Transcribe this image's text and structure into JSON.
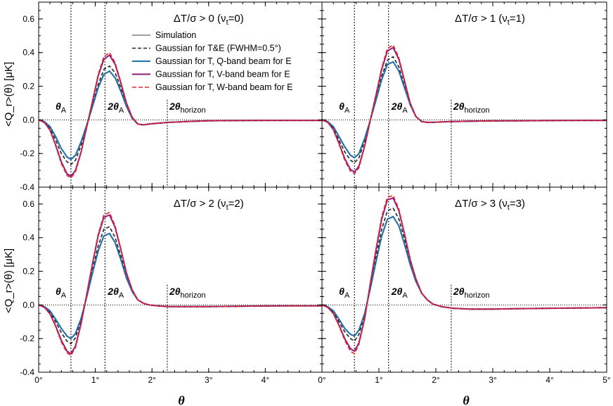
{
  "figure": {
    "ylabel": "<Q_r>(θ) [μK]",
    "xlabel": "θ"
  },
  "colors": {
    "Simulation": "#a0a0a0",
    "Gaussian for T&E (FWHM=0.5°)": "#222222",
    "Gaussian for T, Q-band beam for E": "#1f6fa8",
    "Gaussian for T, V-band beam for E": "#8b1f7a",
    "Gaussian for T, W-band beam for E": "#e8262b"
  },
  "series_styles": [
    {
      "name": "Simulation",
      "dash": "",
      "width": 2
    },
    {
      "name": "Gaussian for T&E (FWHM=0.5°)",
      "dash": "5,3",
      "width": 1.6
    },
    {
      "name": "Gaussian for T, Q-band beam for E",
      "dash": "",
      "width": 2
    },
    {
      "name": "Gaussian for T, V-band beam for E",
      "dash": "",
      "width": 2
    },
    {
      "name": "Gaussian for T, W-band beam for E",
      "dash": "6,3",
      "width": 1.6
    }
  ],
  "markers": {
    "theta_a": {
      "x": 0.57,
      "label": "θ",
      "sub": "A"
    },
    "two_theta_a": {
      "x": 1.17,
      "label": "2θ",
      "sub": "A"
    },
    "two_theta_horizon": {
      "x": 2.27,
      "label": "2θ",
      "sub": "horizon"
    }
  },
  "chart_data": [
    {
      "type": "line",
      "title": "ΔT/σ > 0 (ν_t=0)",
      "xlim": [
        0,
        5
      ],
      "ylim": [
        -0.4,
        0.7
      ],
      "yticks": [
        -0.4,
        -0.2,
        0.0,
        0.2,
        0.4,
        0.6
      ],
      "xticks": [
        0,
        1,
        2,
        3,
        4,
        5
      ],
      "xtick_labels": [
        "0°",
        "1°",
        "2°",
        "3°",
        "4°",
        ""
      ],
      "ytick_labels": [
        "-0.4",
        "-0.2",
        "0.0",
        "0.2",
        "0.4",
        "0.6"
      ],
      "show_legend": true,
      "legend_position": "upper-center",
      "x": [
        0,
        0.1,
        0.2,
        0.3,
        0.4,
        0.5,
        0.57,
        0.65,
        0.75,
        0.85,
        0.95,
        1.05,
        1.15,
        1.25,
        1.35,
        1.45,
        1.55,
        1.65,
        1.75,
        1.85,
        1.95,
        2.1,
        2.3,
        2.6,
        3.0,
        3.5,
        4.0,
        4.5,
        5.0
      ],
      "series": [
        {
          "name": "Simulation",
          "values": [
            0,
            -0.01,
            -0.04,
            -0.1,
            -0.17,
            -0.22,
            -0.235,
            -0.21,
            -0.13,
            -0.03,
            0.08,
            0.19,
            0.27,
            0.29,
            0.25,
            0.17,
            0.08,
            0.01,
            -0.025,
            -0.03,
            -0.025,
            -0.02,
            -0.015,
            -0.01,
            -0.005,
            -0.004,
            -0.003,
            -0.003,
            -0.003
          ]
        },
        {
          "name": "Gaussian for T&E (FWHM=0.5°)",
          "values": [
            0,
            -0.012,
            -0.05,
            -0.12,
            -0.2,
            -0.25,
            -0.265,
            -0.24,
            -0.15,
            -0.03,
            0.09,
            0.21,
            0.3,
            0.32,
            0.28,
            0.19,
            0.09,
            0.015,
            -0.025,
            -0.03,
            -0.025,
            -0.02,
            -0.015,
            -0.01,
            -0.005,
            -0.004,
            -0.003,
            -0.003,
            -0.003
          ]
        },
        {
          "name": "Gaussian for T, Q-band beam for E",
          "values": [
            0,
            -0.01,
            -0.04,
            -0.1,
            -0.17,
            -0.22,
            -0.235,
            -0.21,
            -0.13,
            -0.03,
            0.08,
            0.19,
            0.27,
            0.29,
            0.25,
            0.17,
            0.08,
            0.01,
            -0.025,
            -0.03,
            -0.025,
            -0.02,
            -0.015,
            -0.01,
            -0.005,
            -0.004,
            -0.003,
            -0.003,
            -0.003
          ]
        },
        {
          "name": "Gaussian for T, V-band beam for E",
          "values": [
            0,
            -0.015,
            -0.06,
            -0.15,
            -0.25,
            -0.32,
            -0.335,
            -0.3,
            -0.19,
            -0.04,
            0.11,
            0.26,
            0.36,
            0.385,
            0.33,
            0.22,
            0.1,
            0.015,
            -0.025,
            -0.03,
            -0.025,
            -0.02,
            -0.015,
            -0.01,
            -0.005,
            -0.004,
            -0.003,
            -0.003,
            -0.003
          ]
        },
        {
          "name": "Gaussian for T, W-band beam for E",
          "values": [
            0,
            -0.016,
            -0.062,
            -0.155,
            -0.26,
            -0.33,
            -0.345,
            -0.31,
            -0.195,
            -0.04,
            0.115,
            0.27,
            0.375,
            0.4,
            0.34,
            0.225,
            0.1,
            0.015,
            -0.025,
            -0.03,
            -0.025,
            -0.02,
            -0.015,
            -0.01,
            -0.005,
            -0.004,
            -0.003,
            -0.003,
            -0.003
          ]
        }
      ]
    },
    {
      "type": "line",
      "title": "ΔT/σ > 1 (ν_t=1)",
      "xlim": [
        0,
        5
      ],
      "ylim": [
        -0.4,
        0.7
      ],
      "yticks": [
        -0.4,
        -0.2,
        0.0,
        0.2,
        0.4,
        0.6
      ],
      "xticks": [
        0,
        1,
        2,
        3,
        4,
        5
      ],
      "xtick_labels": [
        "0°",
        "1°",
        "2°",
        "3°",
        "4°",
        "5°"
      ],
      "ytick_labels": [],
      "show_legend": false,
      "x": [
        0,
        0.1,
        0.2,
        0.3,
        0.4,
        0.5,
        0.57,
        0.65,
        0.75,
        0.85,
        0.95,
        1.05,
        1.15,
        1.25,
        1.35,
        1.45,
        1.55,
        1.65,
        1.75,
        1.85,
        1.95,
        2.1,
        2.3,
        2.6,
        3.0,
        3.5,
        4.0,
        4.5,
        5.0
      ],
      "series": [
        {
          "name": "Simulation",
          "values": [
            0,
            -0.01,
            -0.04,
            -0.1,
            -0.16,
            -0.21,
            -0.225,
            -0.2,
            -0.11,
            0.0,
            0.12,
            0.24,
            0.33,
            0.345,
            0.29,
            0.19,
            0.09,
            0.02,
            -0.01,
            -0.015,
            -0.015,
            -0.012,
            -0.01,
            -0.008,
            -0.006,
            -0.005,
            -0.004,
            -0.003,
            -0.003
          ]
        },
        {
          "name": "Gaussian for T&E (FWHM=0.5°)",
          "values": [
            0,
            -0.012,
            -0.05,
            -0.12,
            -0.19,
            -0.24,
            -0.255,
            -0.225,
            -0.125,
            0.0,
            0.13,
            0.26,
            0.355,
            0.375,
            0.315,
            0.2,
            0.095,
            0.02,
            -0.01,
            -0.015,
            -0.015,
            -0.012,
            -0.01,
            -0.008,
            -0.006,
            -0.005,
            -0.004,
            -0.003,
            -0.003
          ]
        },
        {
          "name": "Gaussian for T, Q-band beam for E",
          "values": [
            0,
            -0.01,
            -0.04,
            -0.1,
            -0.16,
            -0.21,
            -0.225,
            -0.2,
            -0.11,
            0.0,
            0.12,
            0.24,
            0.33,
            0.345,
            0.29,
            0.19,
            0.09,
            0.02,
            -0.01,
            -0.015,
            -0.015,
            -0.012,
            -0.01,
            -0.008,
            -0.006,
            -0.005,
            -0.004,
            -0.003,
            -0.003
          ]
        },
        {
          "name": "Gaussian for T, V-band beam for E",
          "values": [
            0,
            -0.014,
            -0.058,
            -0.14,
            -0.23,
            -0.295,
            -0.31,
            -0.275,
            -0.155,
            0.0,
            0.15,
            0.3,
            0.41,
            0.43,
            0.36,
            0.23,
            0.1,
            0.02,
            -0.01,
            -0.015,
            -0.015,
            -0.012,
            -0.01,
            -0.008,
            -0.006,
            -0.005,
            -0.004,
            -0.003,
            -0.003
          ]
        },
        {
          "name": "Gaussian for T, W-band beam for E",
          "values": [
            0,
            -0.015,
            -0.06,
            -0.145,
            -0.24,
            -0.305,
            -0.32,
            -0.285,
            -0.16,
            0.0,
            0.155,
            0.31,
            0.425,
            0.445,
            0.37,
            0.235,
            0.1,
            0.02,
            -0.01,
            -0.015,
            -0.015,
            -0.012,
            -0.01,
            -0.008,
            -0.006,
            -0.005,
            -0.004,
            -0.003,
            -0.003
          ]
        }
      ]
    },
    {
      "type": "line",
      "title": "ΔT/σ > 2 (ν_t=2)",
      "xlim": [
        0,
        5
      ],
      "ylim": [
        -0.4,
        0.7
      ],
      "yticks": [
        -0.4,
        -0.2,
        0.0,
        0.2,
        0.4,
        0.6
      ],
      "xticks": [
        0,
        1,
        2,
        3,
        4,
        5
      ],
      "xtick_labels": [
        "0°",
        "1°",
        "2°",
        "3°",
        "4°",
        ""
      ],
      "ytick_labels": [
        "-0.4",
        "-0.2",
        "0.0",
        "0.2",
        "0.4",
        "0.6"
      ],
      "show_legend": false,
      "x": [
        0,
        0.1,
        0.2,
        0.3,
        0.4,
        0.5,
        0.57,
        0.65,
        0.75,
        0.85,
        0.95,
        1.05,
        1.15,
        1.25,
        1.35,
        1.45,
        1.55,
        1.65,
        1.75,
        1.85,
        1.95,
        2.1,
        2.3,
        2.6,
        3.0,
        3.5,
        4.0,
        4.5,
        5.0
      ],
      "series": [
        {
          "name": "Simulation",
          "values": [
            0,
            -0.01,
            -0.035,
            -0.085,
            -0.14,
            -0.185,
            -0.2,
            -0.17,
            -0.08,
            0.05,
            0.19,
            0.32,
            0.41,
            0.425,
            0.37,
            0.27,
            0.16,
            0.08,
            0.03,
            0.01,
            0.0,
            -0.005,
            -0.01,
            -0.01,
            -0.01,
            -0.008,
            -0.006,
            -0.005,
            -0.005
          ]
        },
        {
          "name": "Gaussian for T&E (FWHM=0.5°)",
          "values": [
            0,
            -0.012,
            -0.042,
            -0.1,
            -0.165,
            -0.215,
            -0.23,
            -0.195,
            -0.09,
            0.055,
            0.21,
            0.35,
            0.45,
            0.465,
            0.4,
            0.29,
            0.17,
            0.085,
            0.03,
            0.01,
            0.0,
            -0.005,
            -0.01,
            -0.01,
            -0.01,
            -0.008,
            -0.006,
            -0.005,
            -0.005
          ]
        },
        {
          "name": "Gaussian for T, Q-band beam for E",
          "values": [
            0,
            -0.01,
            -0.035,
            -0.085,
            -0.14,
            -0.185,
            -0.2,
            -0.17,
            -0.08,
            0.05,
            0.19,
            0.32,
            0.41,
            0.425,
            0.37,
            0.27,
            0.16,
            0.08,
            0.03,
            0.01,
            0.0,
            -0.005,
            -0.01,
            -0.01,
            -0.01,
            -0.008,
            -0.006,
            -0.005,
            -0.005
          ]
        },
        {
          "name": "Gaussian for T, V-band beam for E",
          "values": [
            0,
            -0.014,
            -0.052,
            -0.125,
            -0.21,
            -0.275,
            -0.29,
            -0.245,
            -0.11,
            0.065,
            0.245,
            0.41,
            0.52,
            0.535,
            0.46,
            0.33,
            0.19,
            0.09,
            0.03,
            0.01,
            0.0,
            -0.005,
            -0.01,
            -0.01,
            -0.01,
            -0.008,
            -0.006,
            -0.005,
            -0.005
          ]
        },
        {
          "name": "Gaussian for T, W-band beam for E",
          "values": [
            0,
            -0.015,
            -0.055,
            -0.13,
            -0.22,
            -0.285,
            -0.3,
            -0.255,
            -0.115,
            0.067,
            0.25,
            0.42,
            0.535,
            0.55,
            0.47,
            0.335,
            0.19,
            0.09,
            0.03,
            0.01,
            0.0,
            -0.005,
            -0.01,
            -0.01,
            -0.01,
            -0.008,
            -0.006,
            -0.005,
            -0.005
          ]
        }
      ]
    },
    {
      "type": "line",
      "title": "ΔT/σ > 3 (ν_t=3)",
      "xlim": [
        0,
        5
      ],
      "ylim": [
        -0.4,
        0.7
      ],
      "yticks": [
        -0.4,
        -0.2,
        0.0,
        0.2,
        0.4,
        0.6
      ],
      "xticks": [
        0,
        1,
        2,
        3,
        4,
        5
      ],
      "xtick_labels": [
        "0°",
        "1°",
        "2°",
        "3°",
        "4°",
        "5°"
      ],
      "ytick_labels": [],
      "show_legend": false,
      "x": [
        0,
        0.1,
        0.2,
        0.3,
        0.4,
        0.5,
        0.57,
        0.65,
        0.75,
        0.85,
        0.95,
        1.05,
        1.15,
        1.25,
        1.35,
        1.45,
        1.55,
        1.65,
        1.75,
        1.85,
        1.95,
        2.1,
        2.3,
        2.6,
        3.0,
        3.5,
        4.0,
        4.5,
        5.0
      ],
      "series": [
        {
          "name": "Simulation",
          "values": [
            0,
            -0.01,
            -0.035,
            -0.085,
            -0.14,
            -0.175,
            -0.185,
            -0.15,
            -0.05,
            0.1,
            0.26,
            0.41,
            0.51,
            0.525,
            0.47,
            0.36,
            0.24,
            0.14,
            0.07,
            0.03,
            0.005,
            -0.01,
            -0.02,
            -0.025,
            -0.025,
            -0.022,
            -0.02,
            -0.018,
            -0.016
          ]
        },
        {
          "name": "Gaussian for T&E (FWHM=0.5°)",
          "values": [
            0,
            -0.012,
            -0.042,
            -0.1,
            -0.16,
            -0.2,
            -0.215,
            -0.175,
            -0.06,
            0.11,
            0.29,
            0.45,
            0.56,
            0.575,
            0.51,
            0.39,
            0.255,
            0.15,
            0.07,
            0.03,
            0.005,
            -0.01,
            -0.02,
            -0.025,
            -0.025,
            -0.022,
            -0.02,
            -0.018,
            -0.016
          ]
        },
        {
          "name": "Gaussian for T, Q-band beam for E",
          "values": [
            0,
            -0.01,
            -0.035,
            -0.085,
            -0.14,
            -0.175,
            -0.185,
            -0.15,
            -0.05,
            0.1,
            0.26,
            0.41,
            0.51,
            0.525,
            0.47,
            0.36,
            0.24,
            0.14,
            0.07,
            0.03,
            0.005,
            -0.01,
            -0.02,
            -0.025,
            -0.025,
            -0.022,
            -0.02,
            -0.018,
            -0.016
          ]
        },
        {
          "name": "Gaussian for T, V-band beam for E",
          "values": [
            0,
            -0.014,
            -0.05,
            -0.12,
            -0.2,
            -0.26,
            -0.275,
            -0.225,
            -0.08,
            0.13,
            0.33,
            0.51,
            0.625,
            0.635,
            0.56,
            0.42,
            0.27,
            0.155,
            0.07,
            0.03,
            0.005,
            -0.01,
            -0.02,
            -0.025,
            -0.025,
            -0.022,
            -0.02,
            -0.018,
            -0.016
          ]
        },
        {
          "name": "Gaussian for T, W-band beam for E",
          "values": [
            0,
            -0.015,
            -0.053,
            -0.125,
            -0.21,
            -0.275,
            -0.29,
            -0.235,
            -0.085,
            0.135,
            0.34,
            0.525,
            0.64,
            0.65,
            0.57,
            0.425,
            0.27,
            0.155,
            0.07,
            0.03,
            0.005,
            -0.01,
            -0.02,
            -0.025,
            -0.025,
            -0.022,
            -0.02,
            -0.018,
            -0.016
          ]
        }
      ]
    }
  ]
}
